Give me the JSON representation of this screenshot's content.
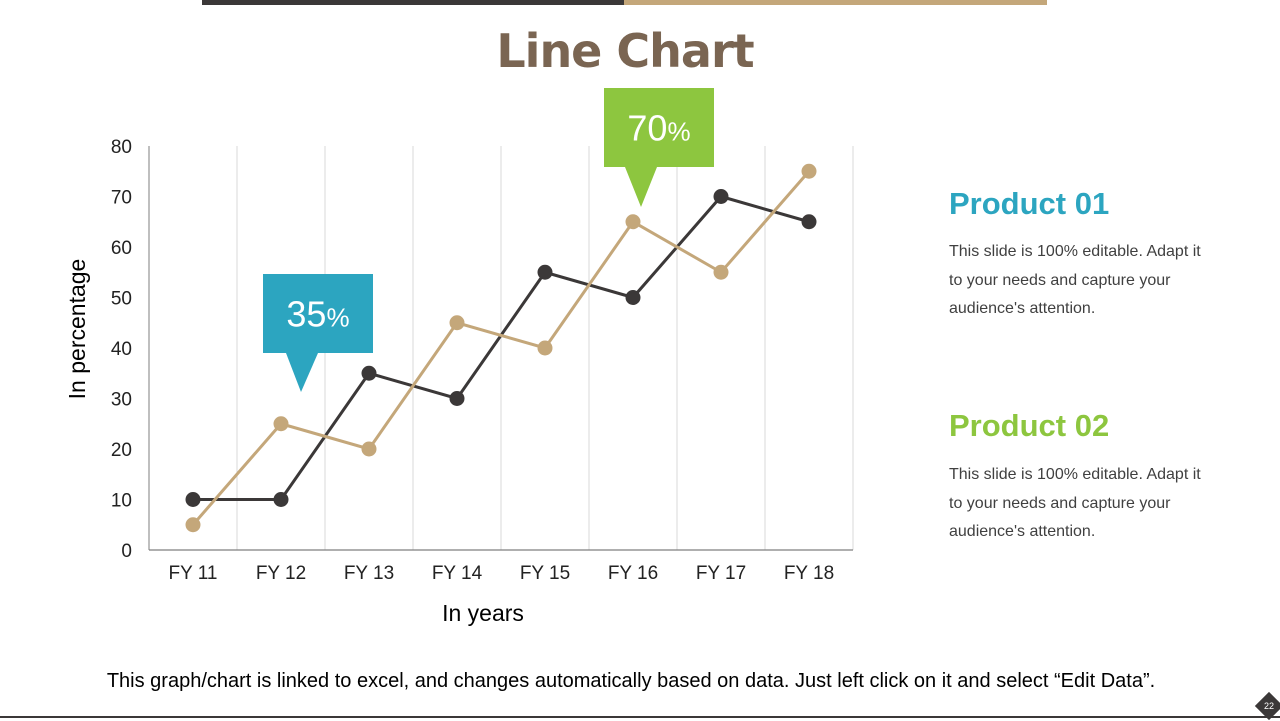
{
  "slide": {
    "title": "Line Chart",
    "footer": "This graph/chart is linked to excel, and changes automatically based on data. Just left click on it and select “Edit Data”.",
    "page_number": "22"
  },
  "products": [
    {
      "title": "Product 01",
      "color": "#2ca5c0",
      "description": "This slide is 100% editable. Adapt it to your needs and capture your audience's attention."
    },
    {
      "title": "Product 02",
      "color": "#8dc63f",
      "description": "This slide is 100% editable. Adapt it to your needs and capture your audience's attention."
    }
  ],
  "callouts": [
    {
      "value": "35",
      "unit": "%",
      "color": "#2ca5c0",
      "category": "FY 12"
    },
    {
      "value": "70",
      "unit": "%",
      "color": "#8dc63f",
      "category": "FY 16"
    }
  ],
  "colors": {
    "accent_dark": "#3b3838",
    "accent_tan": "#c4a77a",
    "title": "#7a6552"
  },
  "chart_data": {
    "type": "line",
    "categories": [
      "FY 11",
      "FY 12",
      "FY 13",
      "FY 14",
      "FY 15",
      "FY 16",
      "FY 17",
      "FY 18"
    ],
    "series": [
      {
        "color": "#3b3838",
        "values": [
          10,
          10,
          35,
          30,
          55,
          50,
          70,
          65
        ]
      },
      {
        "color": "#c4a77a",
        "values": [
          5,
          25,
          20,
          45,
          40,
          65,
          55,
          75
        ]
      }
    ],
    "xlabel": "In years",
    "ylabel": "In percentage",
    "ylim": [
      0,
      80
    ],
    "yticks": [
      0,
      10,
      20,
      30,
      40,
      50,
      60,
      70,
      80
    ],
    "grid": "vertical"
  }
}
